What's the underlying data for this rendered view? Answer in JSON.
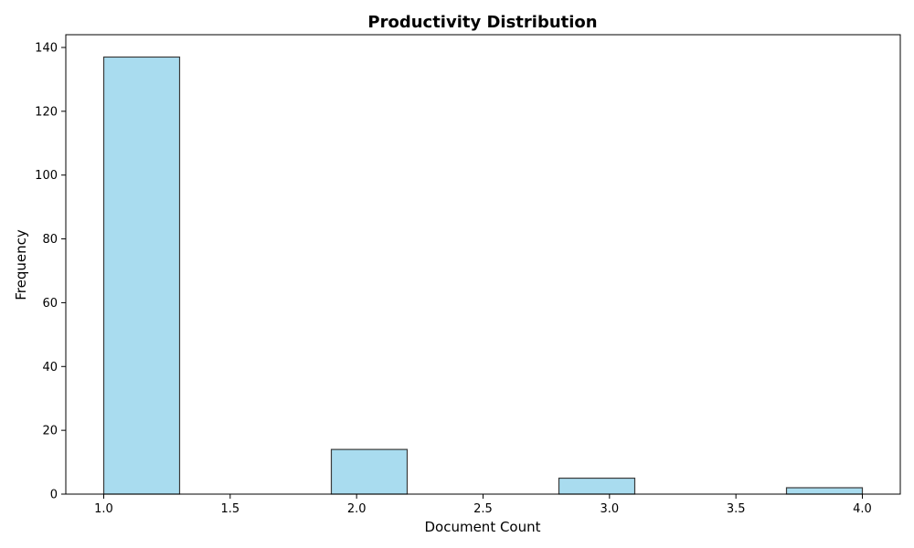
{
  "chart_data": {
    "type": "bar",
    "title": "Productivity Distribution",
    "xlabel": "Document Count",
    "ylabel": "Frequency",
    "xlim": [
      0.85,
      4.15
    ],
    "ylim": [
      0,
      144
    ],
    "x_ticks": [
      1.0,
      1.5,
      2.0,
      2.5,
      3.0,
      3.5,
      4.0
    ],
    "y_ticks": [
      0,
      20,
      40,
      60,
      80,
      100,
      120,
      140
    ],
    "x_tick_labels": [
      "1.0",
      "1.5",
      "2.0",
      "2.5",
      "3.0",
      "3.5",
      "4.0"
    ],
    "y_tick_labels": [
      "0",
      "20",
      "40",
      "60",
      "80",
      "100",
      "120",
      "140"
    ],
    "bins": [
      {
        "start": 1.0,
        "end": 1.3,
        "value": 137
      },
      {
        "start": 1.9,
        "end": 2.2,
        "value": 14
      },
      {
        "start": 2.8,
        "end": 3.1,
        "value": 5
      },
      {
        "start": 3.7,
        "end": 4.0,
        "value": 2
      }
    ],
    "grid": false,
    "colors": {
      "bar_fill": "#a9dcef",
      "bar_edge": "#3a3a3a",
      "axes": "#000000"
    }
  }
}
